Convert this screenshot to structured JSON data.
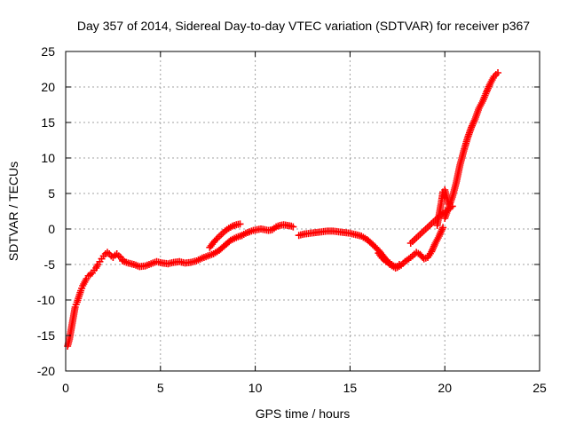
{
  "chart_data": {
    "type": "scatter",
    "title": "Day 357 of 2014, Sidereal Day-to-day VTEC variation (SDTVAR) for receiver p367",
    "xlabel": "GPS time / hours",
    "ylabel": "SDTVAR / TECUs",
    "xlim": [
      0,
      25
    ],
    "ylim": [
      -20,
      25
    ],
    "x_ticks": [
      0,
      5,
      10,
      15,
      20,
      25
    ],
    "y_ticks": [
      -20,
      -15,
      -10,
      -5,
      0,
      5,
      10,
      15,
      20,
      25
    ],
    "grid": true,
    "marker": "plus",
    "colors": {
      "series": "#ff0000",
      "grid": "#a0a0a0",
      "axis": "#000000"
    },
    "series": [
      {
        "segments": [
          {
            "x": [
              0.1,
              0.2,
              0.3,
              0.4,
              0.5,
              0.6,
              0.7,
              0.8,
              0.9,
              1.0,
              1.1,
              1.2,
              1.3,
              1.4,
              1.5,
              1.6,
              1.7,
              1.8,
              1.9,
              2.0,
              2.1,
              2.2,
              2.3,
              2.4,
              2.5,
              2.6,
              2.7,
              2.8,
              2.9,
              3.0
            ],
            "y": [
              -16.5,
              -15.5,
              -14.0,
              -12.5,
              -11.0,
              -10.3,
              -9.5,
              -8.7,
              -8.0,
              -7.5,
              -7.0,
              -6.6,
              -6.4,
              -6.2,
              -5.8,
              -5.5,
              -5.0,
              -4.6,
              -4.2,
              -3.8,
              -3.5,
              -3.3,
              -3.5,
              -3.8,
              -4.0,
              -3.7,
              -3.5,
              -3.8,
              -4.0,
              -4.3
            ]
          },
          {
            "x": [
              3.0,
              3.3,
              3.6,
              3.9,
              4.2,
              4.5,
              4.8,
              5.1,
              5.4,
              5.7,
              6.0,
              6.3,
              6.6,
              6.9,
              7.2,
              7.5,
              7.8,
              8.1,
              8.4,
              8.7,
              9.0,
              9.3
            ],
            "y": [
              -4.5,
              -4.8,
              -5.0,
              -5.3,
              -5.2,
              -4.9,
              -4.6,
              -4.8,
              -4.9,
              -4.7,
              -4.6,
              -4.8,
              -4.7,
              -4.5,
              -4.1,
              -3.8,
              -3.5,
              -3.0,
              -2.3,
              -1.6,
              -1.2,
              -0.9
            ]
          },
          {
            "x": [
              7.6,
              7.8,
              8.0,
              8.2,
              8.4,
              8.6,
              8.8,
              9.0,
              9.2
            ],
            "y": [
              -2.6,
              -1.9,
              -1.3,
              -0.8,
              -0.3,
              0.1,
              0.4,
              0.6,
              0.7
            ]
          },
          {
            "x": [
              9.3,
              9.5,
              9.7,
              9.9,
              10.1,
              10.3,
              10.5,
              10.7,
              10.9,
              11.1,
              11.3,
              11.5,
              11.7,
              11.9,
              12.0
            ],
            "y": [
              -0.9,
              -0.6,
              -0.4,
              -0.2,
              -0.1,
              0.0,
              -0.1,
              -0.2,
              -0.1,
              0.3,
              0.5,
              0.6,
              0.5,
              0.4,
              0.3
            ]
          },
          {
            "x": [
              12.3,
              12.6,
              12.9,
              13.2,
              13.5,
              13.8,
              14.1,
              14.4,
              14.7,
              15.0,
              15.3,
              15.6,
              15.9,
              16.2,
              16.5,
              16.8,
              17.1,
              17.4,
              17.6
            ],
            "y": [
              -0.9,
              -0.7,
              -0.6,
              -0.5,
              -0.4,
              -0.3,
              -0.3,
              -0.4,
              -0.5,
              -0.6,
              -0.8,
              -1.0,
              -1.5,
              -2.2,
              -3.0,
              -4.0,
              -5.0,
              -5.5,
              -5.0
            ]
          },
          {
            "x": [
              16.5,
              16.7,
              16.9,
              17.1,
              17.3,
              17.5,
              17.7,
              17.9,
              18.1,
              18.3,
              18.5,
              18.7,
              18.9,
              19.1,
              19.3,
              19.5,
              19.7,
              19.9
            ],
            "y": [
              -3.4,
              -4.1,
              -4.6,
              -4.8,
              -5.2,
              -5.4,
              -5.1,
              -4.6,
              -4.2,
              -3.8,
              -3.3,
              -3.6,
              -4.2,
              -4.0,
              -3.2,
              -2.0,
              -1.0,
              0.2
            ]
          },
          {
            "x": [
              18.2,
              18.4,
              18.6,
              18.8,
              19.0,
              19.2,
              19.4,
              19.6,
              19.8,
              20.0,
              20.2,
              20.4
            ],
            "y": [
              -2.0,
              -1.5,
              -1.0,
              -0.5,
              0.0,
              0.5,
              1.0,
              1.5,
              2.0,
              2.3,
              2.8,
              3.2
            ]
          },
          {
            "x": [
              19.6,
              19.7,
              19.8,
              19.9,
              20.0,
              20.1,
              20.2
            ],
            "y": [
              0.5,
              2.0,
              3.5,
              5.2,
              5.5,
              4.5,
              3.5
            ]
          },
          {
            "x": [
              20.0,
              20.2,
              20.4,
              20.6,
              20.8,
              21.0,
              21.2,
              21.4,
              21.6,
              21.8,
              22.0,
              22.2,
              22.4,
              22.6,
              22.8
            ],
            "y": [
              1.5,
              3.0,
              4.5,
              6.5,
              9.0,
              11.0,
              12.8,
              14.3,
              15.5,
              17.0,
              18.0,
              19.3,
              20.5,
              21.5,
              22.0
            ]
          }
        ]
      }
    ]
  }
}
